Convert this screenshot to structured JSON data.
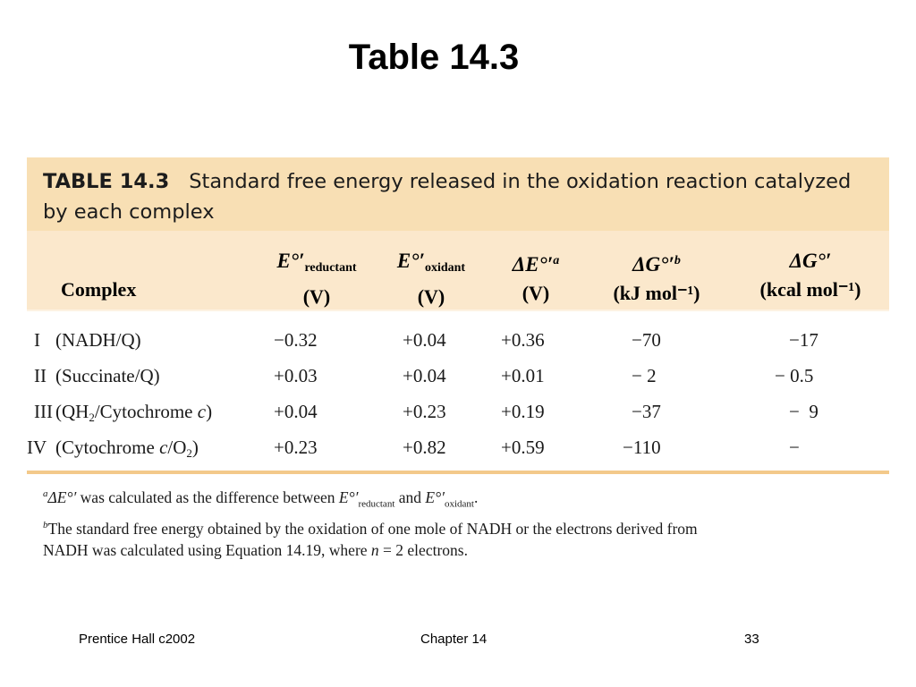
{
  "slide": {
    "title": "Table 14.3"
  },
  "table": {
    "caption_number": "TABLE 14.3",
    "caption_text": "Standard free energy released in the oxidation reaction catalyzed by each complex",
    "headers": {
      "complex": "Complex",
      "e_reductant": {
        "symbol": "E°′",
        "subscript": "reductant",
        "unit": "(V)"
      },
      "e_oxidant": {
        "symbol": "E°′",
        "subscript": "oxidant",
        "unit": "(V)"
      },
      "delta_e": {
        "symbol": "ΔE°′",
        "superscript": "a",
        "unit": "(V)"
      },
      "delta_g_kj": {
        "symbol": "ΔG°′",
        "superscript": "b",
        "unit": "(kJ mol⁻¹)"
      },
      "delta_g_kcal": {
        "symbol": "ΔG°′",
        "unit": "(kcal mol⁻¹)"
      }
    },
    "rows": [
      {
        "numeral": "I",
        "name": "(NADH/Q)",
        "e_red": "−0.32",
        "e_ox": "+0.04",
        "delta_e": "+0.36",
        "dg_kj": "−70",
        "dg_kcal": "−17"
      },
      {
        "numeral": "II",
        "name": "(Succinate/Q)",
        "e_red": "+0.03",
        "e_ox": "+0.04",
        "delta_e": "+0.01",
        "dg_kj": "− 2",
        "dg_kcal": "− 0.5"
      },
      {
        "numeral": "III",
        "name_pre": "(QH",
        "name_sub": "2",
        "name_mid": "/Cytochrome ",
        "name_ital": "c",
        "name_post": ")",
        "e_red": "+0.04",
        "e_ox": "+0.23",
        "delta_e": "+0.19",
        "dg_kj": "−37",
        "dg_kcal": "−  9"
      },
      {
        "numeral": "IV",
        "name_pre": "(Cytochrome ",
        "name_ital": "c",
        "name_mid": "/O",
        "name_sub": "2",
        "name_post": ")",
        "e_red": "+0.23",
        "e_ox": "+0.82",
        "delta_e": "+0.59",
        "dg_kj": "−110",
        "dg_kcal": "−"
      }
    ],
    "footnotes": {
      "a": {
        "marker": "a",
        "lead": "ΔE°′",
        "text1": " was calculated as the difference between ",
        "sym1": "E°′",
        "sub1": "reductant",
        "text2": " and ",
        "sym2": "E°′",
        "sub2": "oxidant",
        "end": "."
      },
      "b": {
        "marker": "b",
        "line1": "The standard free energy obtained by the oxidation of one mole of NADH or the electrons derived from",
        "line2_pre": "NADH was calculated using Equation 14.19, where ",
        "line2_var": "n",
        "line2_post": " = 2 electrons."
      }
    }
  },
  "footer": {
    "left": "Prentice Hall c2002",
    "center": "Chapter 14",
    "right": "33"
  }
}
